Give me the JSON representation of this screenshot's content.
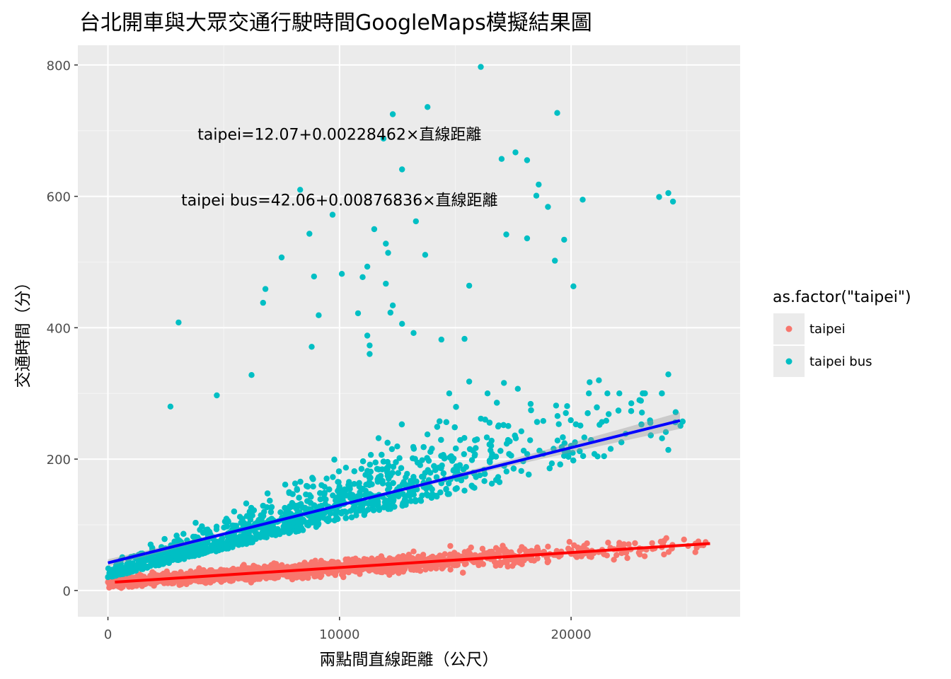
{
  "chart_data": {
    "type": "scatter",
    "title": "台北開車與大眾交通行駛時間GoogleMaps模擬結果圖",
    "xlabel": "兩點間直線距離（公尺）",
    "ylabel": "交通時間（分）",
    "xlim": [
      -1300,
      27300
    ],
    "ylim": [
      -40,
      830
    ],
    "x_ticks": [
      0,
      10000,
      20000
    ],
    "x_tick_labels": [
      "0",
      "10000",
      "20000"
    ],
    "x_minor_ticks": [
      5000,
      15000,
      25000
    ],
    "y_ticks": [
      0,
      200,
      400,
      600,
      800
    ],
    "y_tick_labels": [
      "0",
      "200",
      "400",
      "600",
      "800"
    ],
    "y_minor_ticks": [
      100,
      300,
      500,
      700
    ],
    "grid": true,
    "background": "#ebebeb",
    "legend": {
      "title": "as.factor(\"taipei\")",
      "position": "right",
      "entries": [
        {
          "label": "taipei",
          "color": "#f8766d"
        },
        {
          "label": "taipei bus",
          "color": "#00bfc4"
        }
      ]
    },
    "series": [
      {
        "name": "taipei",
        "color": "#f8766d",
        "point_count_estimate": 3000,
        "x_range": [
          0,
          26000
        ],
        "y_typical_range": [
          5,
          85
        ],
        "fit": {
          "intercept": 12.07,
          "slope": 0.00228462,
          "x_from": 300,
          "x_to": 26000,
          "line_color": "#ff0000"
        }
      },
      {
        "name": "taipei bus",
        "color": "#00bfc4",
        "point_count_estimate": 3000,
        "x_range": [
          0,
          25000
        ],
        "y_typical_range": [
          0,
          300
        ],
        "fit": {
          "intercept": 42.06,
          "slope": 0.00876836,
          "x_from": 0,
          "x_to": 24700,
          "line_color": "#0000ff"
        },
        "notable_points": [
          [
            16100,
            797
          ],
          [
            12300,
            725
          ],
          [
            13800,
            736
          ],
          [
            19400,
            727
          ],
          [
            11900,
            688
          ],
          [
            17600,
            667
          ],
          [
            12700,
            641
          ],
          [
            17000,
            657
          ],
          [
            18100,
            655
          ],
          [
            18600,
            618
          ],
          [
            8300,
            610
          ],
          [
            18500,
            601
          ],
          [
            19000,
            584
          ],
          [
            20500,
            595
          ],
          [
            23800,
            599
          ],
          [
            24200,
            605
          ],
          [
            24400,
            592
          ],
          [
            9700,
            572
          ],
          [
            13300,
            562
          ],
          [
            11500,
            550
          ],
          [
            8700,
            543
          ],
          [
            17200,
            542
          ],
          [
            18100,
            536
          ],
          [
            19700,
            534
          ],
          [
            12000,
            528
          ],
          [
            12100,
            514
          ],
          [
            13700,
            511
          ],
          [
            7500,
            507
          ],
          [
            19300,
            502
          ],
          [
            11200,
            493
          ],
          [
            11000,
            477
          ],
          [
            8900,
            478
          ],
          [
            10100,
            482
          ],
          [
            6800,
            459
          ],
          [
            12000,
            467
          ],
          [
            15600,
            464
          ],
          [
            20100,
            463
          ],
          [
            6700,
            438
          ],
          [
            12300,
            434
          ],
          [
            12200,
            423
          ],
          [
            9100,
            419
          ],
          [
            3050,
            408
          ],
          [
            10800,
            422
          ],
          [
            12700,
            406
          ],
          [
            13200,
            392
          ],
          [
            11200,
            388
          ],
          [
            14400,
            382
          ],
          [
            15400,
            383
          ],
          [
            11300,
            373
          ],
          [
            8800,
            371
          ],
          [
            11300,
            360
          ],
          [
            6200,
            328
          ],
          [
            24200,
            329
          ],
          [
            15600,
            318
          ],
          [
            21200,
            320
          ],
          [
            20800,
            317
          ],
          [
            17100,
            316
          ],
          [
            17700,
            307
          ],
          [
            2700,
            280
          ],
          [
            4700,
            297
          ],
          [
            18800,
            258
          ],
          [
            22600,
            285
          ],
          [
            24500,
            256
          ],
          [
            24200,
            214
          ]
        ]
      }
    ],
    "annotations": [
      {
        "text": "taipei=12.07+0.00228462×直線距離",
        "x": 10000,
        "y": 695
      },
      {
        "text": "taipei bus=42.06+0.00876836×直線距離",
        "x": 10000,
        "y": 595
      }
    ]
  }
}
